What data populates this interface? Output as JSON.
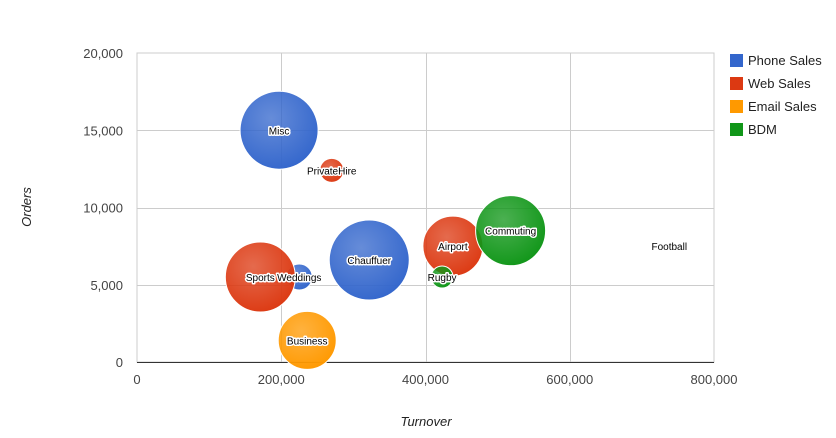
{
  "chart_data": {
    "type": "scatter",
    "subtype": "bubble",
    "xlabel": "Turnover",
    "ylabel": "Orders",
    "xlim": [
      0,
      800000
    ],
    "ylim": [
      0,
      20000
    ],
    "x_ticks": [
      0,
      200000,
      400000,
      600000,
      800000
    ],
    "x_tick_labels": [
      "0",
      "200,000",
      "400,000",
      "600,000",
      "800,000"
    ],
    "y_ticks": [
      0,
      5000,
      10000,
      15000,
      20000
    ],
    "y_tick_labels": [
      "0",
      "5,000",
      "10,000",
      "15,000",
      "20,000"
    ],
    "grid": true,
    "legend": "right",
    "series": [
      {
        "name": "Phone Sales",
        "color": "#3366cc"
      },
      {
        "name": "Web Sales",
        "color": "#dc3912"
      },
      {
        "name": "Email Sales",
        "color": "#ff9900"
      },
      {
        "name": "BDM",
        "color": "#109618"
      }
    ],
    "points": [
      {
        "label": "Misc",
        "series": "Phone Sales",
        "x": 197000,
        "y": 15000,
        "size": 3.9
      },
      {
        "label": "PrivateHire",
        "series": "Web Sales",
        "x": 270000,
        "y": 12400,
        "size": 1.2
      },
      {
        "label": "Chauffuer",
        "series": "Phone Sales",
        "x": 322000,
        "y": 6600,
        "size": 4.0
      },
      {
        "label": "Weddings",
        "series": "Phone Sales",
        "x": 225000,
        "y": 5500,
        "size": 1.3
      },
      {
        "label": "Sports",
        "series": "Web Sales",
        "x": 171000,
        "y": 5500,
        "size": 3.5
      },
      {
        "label": "Business",
        "series": "Email Sales",
        "x": 236000,
        "y": 1400,
        "size": 2.9
      },
      {
        "label": "Airport",
        "series": "Web Sales",
        "x": 438000,
        "y": 7500,
        "size": 3.0
      },
      {
        "label": "Rugby",
        "series": "BDM",
        "x": 423000,
        "y": 5500,
        "size": 1.1
      },
      {
        "label": "Commuting",
        "series": "BDM",
        "x": 518000,
        "y": 8500,
        "size": 3.5
      },
      {
        "label": "Football",
        "series": "BDM",
        "x": 738000,
        "y": 7500,
        "size": 0
      }
    ]
  }
}
